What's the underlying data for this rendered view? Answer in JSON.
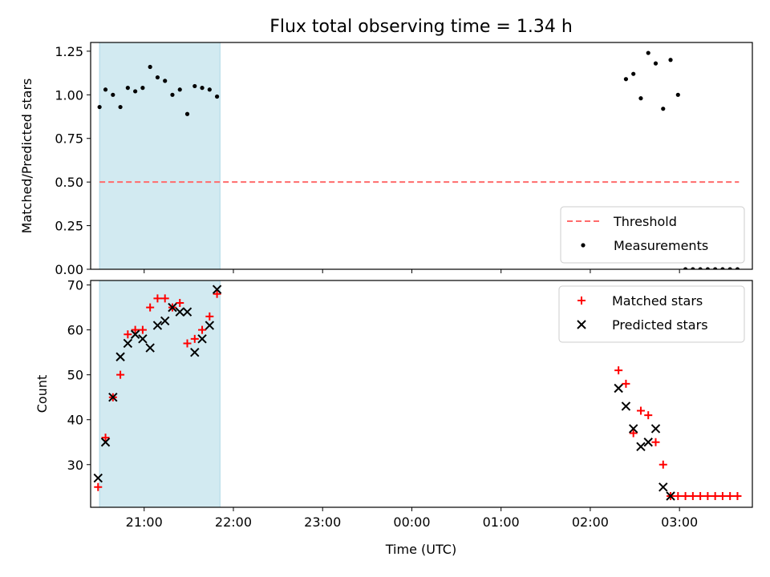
{
  "figure": {
    "title": "Flux total observing time = 1.34 h",
    "xlabel": "Time (UTC)"
  },
  "colors": {
    "shade": "#add8e6",
    "threshold": "#ff6b6b",
    "measurements": "#000000",
    "matched": "#ff0000",
    "predicted": "#000000"
  },
  "chart_data": [
    {
      "type": "scatter",
      "ylabel": "Matched/Predicted stars",
      "xlim": [
        "20:24",
        "03:49"
      ],
      "ylim": [
        0,
        1.3
      ],
      "yticks": [
        0,
        0.25,
        0.5,
        0.75,
        1.0,
        1.25
      ],
      "ytick_labels": [
        "0.00",
        "0.25",
        "0.50",
        "0.75",
        "1.00",
        "1.25"
      ],
      "xticks": [
        "21:00",
        "22:00",
        "23:00",
        "00:00",
        "01:00",
        "02:00",
        "03:00"
      ],
      "show_xtick_labels": false,
      "shaded_span": [
        "20:30",
        "21:51"
      ],
      "legend_position": "lower-right",
      "legend": [
        "Threshold",
        "Measurements"
      ],
      "threshold": {
        "name": "Threshold",
        "y": 0.5,
        "x": [
          "20:30",
          "03:40"
        ],
        "style": "dashed"
      },
      "series": [
        {
          "name": "Measurements",
          "marker": "dot",
          "x": [
            "20:30",
            "20:34",
            "20:39",
            "20:44",
            "20:49",
            "20:54",
            "20:59",
            "21:04",
            "21:09",
            "21:14",
            "21:19",
            "21:24",
            "21:29",
            "21:34",
            "21:39",
            "21:44",
            "21:49",
            "02:24",
            "02:29",
            "02:34",
            "02:39",
            "02:44",
            "02:49",
            "02:54",
            "02:59",
            "03:04",
            "03:09",
            "03:14",
            "03:19",
            "03:24",
            "03:29",
            "03:34",
            "03:39"
          ],
          "y": [
            0.93,
            1.03,
            1.0,
            0.93,
            1.04,
            1.02,
            1.04,
            1.16,
            1.1,
            1.08,
            1.0,
            1.03,
            0.89,
            1.05,
            1.04,
            1.03,
            0.99,
            1.09,
            1.12,
            0.98,
            1.24,
            1.18,
            0.92,
            1.2,
            1.0,
            0,
            0,
            0,
            0,
            0,
            0,
            0,
            0
          ]
        }
      ]
    },
    {
      "type": "scatter",
      "ylabel": "Count",
      "xlabel": "Time (UTC)",
      "xlim": [
        "20:24",
        "03:49"
      ],
      "ylim": [
        20.5,
        71
      ],
      "yticks": [
        30,
        40,
        50,
        60,
        70
      ],
      "ytick_labels": [
        "30",
        "40",
        "50",
        "60",
        "70"
      ],
      "xticks": [
        "21:00",
        "22:00",
        "23:00",
        "00:00",
        "01:00",
        "02:00",
        "03:00"
      ],
      "xtick_labels": [
        "21:00",
        "22:00",
        "23:00",
        "00:00",
        "01:00",
        "02:00",
        "03:00"
      ],
      "shaded_span": [
        "20:30",
        "21:51"
      ],
      "legend_position": "upper-right",
      "legend": [
        "Matched stars",
        "Predicted stars"
      ],
      "series": [
        {
          "name": "Matched stars",
          "marker": "plus",
          "x": [
            "20:29",
            "20:34",
            "20:39",
            "20:44",
            "20:49",
            "20:54",
            "20:59",
            "21:04",
            "21:09",
            "21:14",
            "21:19",
            "21:24",
            "21:29",
            "21:34",
            "21:39",
            "21:44",
            "21:49",
            "02:19",
            "02:24",
            "02:29",
            "02:34",
            "02:39",
            "02:44",
            "02:49",
            "02:54",
            "02:59",
            "03:04",
            "03:09",
            "03:14",
            "03:19",
            "03:24",
            "03:29",
            "03:34",
            "03:39"
          ],
          "y": [
            25,
            36,
            45,
            50,
            59,
            60,
            60,
            65,
            67,
            67,
            65,
            66,
            57,
            58,
            60,
            63,
            68,
            51,
            48,
            37,
            42,
            41,
            35,
            30,
            23,
            23,
            23,
            23,
            23,
            23,
            23,
            23,
            23,
            23
          ]
        },
        {
          "name": "Predicted stars",
          "marker": "x",
          "x": [
            "20:29",
            "20:34",
            "20:39",
            "20:44",
            "20:49",
            "20:54",
            "20:59",
            "21:04",
            "21:09",
            "21:14",
            "21:19",
            "21:24",
            "21:29",
            "21:34",
            "21:39",
            "21:44",
            "21:49",
            "02:19",
            "02:24",
            "02:29",
            "02:34",
            "02:39",
            "02:44",
            "02:49",
            "02:54"
          ],
          "y": [
            27,
            35,
            45,
            54,
            57,
            59,
            58,
            56,
            61,
            62,
            65,
            64,
            64,
            55,
            58,
            61,
            69,
            47,
            43,
            38,
            34,
            35,
            38,
            25,
            23
          ]
        }
      ]
    }
  ]
}
